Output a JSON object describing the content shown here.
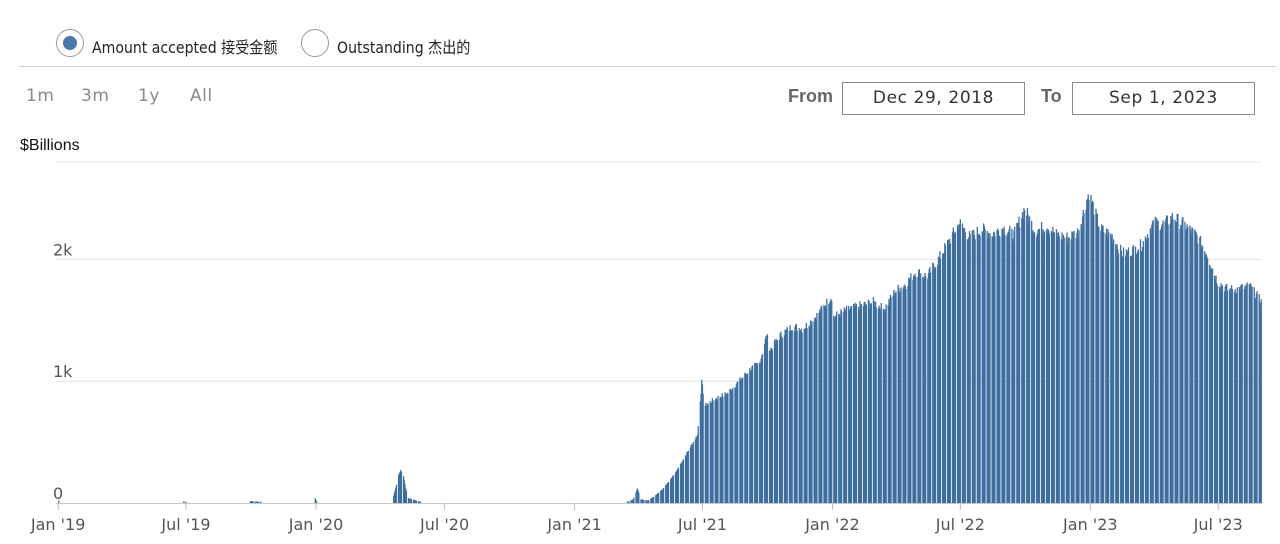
{
  "legend": {
    "items": [
      {
        "label": "Amount accepted 接受金额",
        "selected": true
      },
      {
        "label": "Outstanding 杰出的",
        "selected": false
      }
    ]
  },
  "zoom_buttons": [
    "1m",
    "3m",
    "1y",
    "All"
  ],
  "range": {
    "from_label": "From",
    "from_value": "Dec 29, 2018",
    "to_label": "To",
    "to_value": "Sep 1, 2023"
  },
  "colors": {
    "series": "#3f6f9f",
    "selected_radio": "#4a78a8",
    "grid": "#e2e2e2"
  },
  "chart_data": {
    "type": "bar",
    "ylabel": "$Billions",
    "ylim": [
      0,
      2800
    ],
    "y_ticks": [
      {
        "value": 0,
        "label": "0"
      },
      {
        "value": 1000,
        "label": "1k"
      },
      {
        "value": 2000,
        "label": "2k"
      }
    ],
    "x_ticks": [
      "Jan '19",
      "Jul '19",
      "Jan '20",
      "Jul '20",
      "Jan '21",
      "Jul '21",
      "Jan '22",
      "Jul '22",
      "Jan '23",
      "Jul '23"
    ],
    "x_range": [
      "2018-12-29",
      "2023-09-01"
    ],
    "series": [
      {
        "name": "Amount accepted 接受金额",
        "points": [
          [
            "2019-01-02",
            20
          ],
          [
            "2019-06-28",
            15
          ],
          [
            "2019-07-01",
            10
          ],
          [
            "2019-09-30",
            15
          ],
          [
            "2019-10-15",
            10
          ],
          [
            "2019-12-31",
            40
          ],
          [
            "2020-01-02",
            10
          ],
          [
            "2020-04-20",
            60
          ],
          [
            "2020-04-24",
            150
          ],
          [
            "2020-04-27",
            230
          ],
          [
            "2020-04-30",
            270
          ],
          [
            "2020-05-04",
            220
          ],
          [
            "2020-05-07",
            120
          ],
          [
            "2020-05-11",
            40
          ],
          [
            "2020-05-28",
            10
          ],
          [
            "2021-03-17",
            10
          ],
          [
            "2021-03-25",
            30
          ],
          [
            "2021-03-31",
            120
          ],
          [
            "2021-04-05",
            30
          ],
          [
            "2021-04-15",
            20
          ],
          [
            "2021-04-25",
            60
          ],
          [
            "2021-05-05",
            110
          ],
          [
            "2021-05-15",
            180
          ],
          [
            "2021-05-25",
            260
          ],
          [
            "2021-06-04",
            360
          ],
          [
            "2021-06-14",
            460
          ],
          [
            "2021-06-24",
            560
          ],
          [
            "2021-06-30",
            990
          ],
          [
            "2021-07-05",
            800
          ],
          [
            "2021-07-20",
            860
          ],
          [
            "2021-08-05",
            900
          ],
          [
            "2021-08-20",
            990
          ],
          [
            "2021-09-05",
            1090
          ],
          [
            "2021-09-20",
            1150
          ],
          [
            "2021-09-30",
            1380
          ],
          [
            "2021-10-05",
            1260
          ],
          [
            "2021-10-20",
            1380
          ],
          [
            "2021-11-05",
            1450
          ],
          [
            "2021-11-20",
            1430
          ],
          [
            "2021-12-10",
            1540
          ],
          [
            "2021-12-31",
            1700
          ],
          [
            "2022-01-03",
            1530
          ],
          [
            "2022-01-20",
            1580
          ],
          [
            "2022-02-10",
            1620
          ],
          [
            "2022-02-28",
            1650
          ],
          [
            "2022-03-15",
            1590
          ],
          [
            "2022-03-31",
            1740
          ],
          [
            "2022-04-15",
            1800
          ],
          [
            "2022-04-29",
            1900
          ],
          [
            "2022-05-15",
            1860
          ],
          [
            "2022-05-31",
            2000
          ],
          [
            "2022-06-15",
            2150
          ],
          [
            "2022-06-30",
            2300
          ],
          [
            "2022-07-15",
            2180
          ],
          [
            "2022-07-31",
            2250
          ],
          [
            "2022-08-15",
            2210
          ],
          [
            "2022-08-31",
            2260
          ],
          [
            "2022-09-15",
            2200
          ],
          [
            "2022-09-30",
            2420
          ],
          [
            "2022-10-15",
            2230
          ],
          [
            "2022-10-31",
            2280
          ],
          [
            "2022-11-15",
            2200
          ],
          [
            "2022-11-30",
            2180
          ],
          [
            "2022-12-15",
            2230
          ],
          [
            "2022-12-30",
            2550
          ],
          [
            "2023-01-15",
            2250
          ],
          [
            "2023-01-31",
            2200
          ],
          [
            "2023-02-15",
            2050
          ],
          [
            "2023-02-28",
            2070
          ],
          [
            "2023-03-15",
            2120
          ],
          [
            "2023-03-31",
            2300
          ],
          [
            "2023-04-15",
            2290
          ],
          [
            "2023-04-28",
            2350
          ],
          [
            "2023-05-15",
            2280
          ],
          [
            "2023-05-31",
            2200
          ],
          [
            "2023-06-15",
            2050
          ],
          [
            "2023-06-30",
            1820
          ],
          [
            "2023-07-15",
            1750
          ],
          [
            "2023-07-31",
            1760
          ],
          [
            "2023-08-15",
            1780
          ],
          [
            "2023-08-31",
            1650
          ]
        ]
      }
    ]
  }
}
